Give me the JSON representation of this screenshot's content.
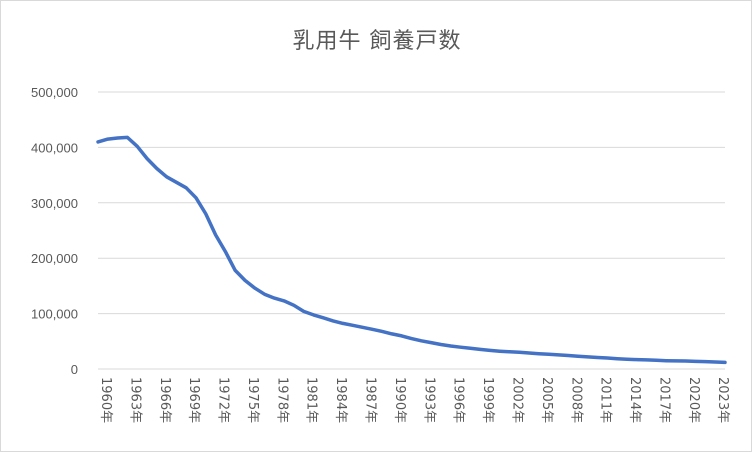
{
  "chart_data": {
    "type": "line",
    "title": "乳用牛 飼養戸数",
    "xlabel": "",
    "ylabel": "",
    "ylim": [
      0,
      500000
    ],
    "yticks": [
      0,
      100000,
      200000,
      300000,
      400000,
      500000
    ],
    "ytick_labels": [
      "0",
      "100,000",
      "200,000",
      "300,000",
      "400,000",
      "500,000"
    ],
    "xtick_labels": [
      "1960年",
      "1963年",
      "1966年",
      "1969年",
      "1972年",
      "1975年",
      "1978年",
      "1981年",
      "1984年",
      "1987年",
      "1990年",
      "1993年",
      "1996年",
      "1999年",
      "2002年",
      "2005年",
      "2008年",
      "2011年",
      "2014年",
      "2017年",
      "2020年",
      "2023年"
    ],
    "grid": true,
    "legend": "none",
    "color": "#4472c4",
    "series": [
      {
        "x": [
          1960,
          1961,
          1962,
          1963,
          1964,
          1965,
          1966,
          1967,
          1968,
          1969,
          1970,
          1971,
          1972,
          1973,
          1974,
          1975,
          1976,
          1977,
          1978,
          1979,
          1980,
          1981,
          1982,
          1983,
          1984,
          1985,
          1986,
          1987,
          1988,
          1989,
          1990,
          1991,
          1992,
          1993,
          1994,
          1995,
          1996,
          1997,
          1998,
          1999,
          2000,
          2001,
          2002,
          2003,
          2004,
          2005,
          2006,
          2007,
          2008,
          2009,
          2010,
          2011,
          2012,
          2013,
          2014,
          2015,
          2016,
          2017,
          2018,
          2019,
          2020,
          2021,
          2022,
          2023,
          2024
        ],
        "values": [
          410000,
          415000,
          417000,
          418000,
          402000,
          380000,
          362000,
          347000,
          337000,
          327000,
          309000,
          280000,
          242000,
          212000,
          178000,
          160000,
          146000,
          135000,
          128000,
          123000,
          115000,
          104000,
          97600,
          92400,
          86900,
          82400,
          78800,
          75200,
          71600,
          67800,
          63300,
          59800,
          54800,
          50900,
          47600,
          44300,
          41600,
          39400,
          37400,
          35400,
          33600,
          32200,
          31000,
          30100,
          28800,
          27700,
          26600,
          25400,
          24400,
          23100,
          21900,
          20800,
          19900,
          18600,
          17700,
          17000,
          16400,
          15700,
          15000,
          14600,
          14400,
          13800,
          13300,
          12600,
          11900
        ]
      }
    ]
  }
}
